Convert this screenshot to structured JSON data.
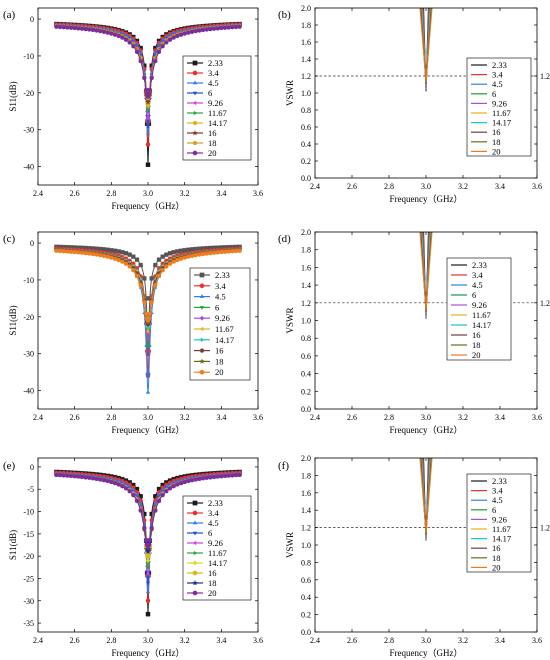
{
  "chart_data": [
    {
      "type": "line",
      "panel_label": "(a)",
      "xlabel": "Frequency（GHz）",
      "ylabel": "S11(dB)",
      "xlim": [
        2.4,
        3.6
      ],
      "ylim": [
        -45,
        3
      ],
      "xticks": [
        "2.4",
        "2.6",
        "2.8",
        "3.0",
        "3.2",
        "3.4",
        "3.6"
      ],
      "yticks": [
        "0",
        "-10",
        "-20",
        "-30",
        "-40"
      ],
      "ytick_values": [
        0,
        -10,
        -20,
        -30,
        -40
      ],
      "x_range": [
        2.5,
        3.5
      ],
      "resonance_ghz": 3.0,
      "legend_position": "right",
      "series": [
        {
          "name": "2.33",
          "color": "#1a1a1a",
          "marker": "square",
          "min_db": -39.5
        },
        {
          "name": "3.4",
          "color": "#e8312f",
          "marker": "circle",
          "min_db": -34
        },
        {
          "name": "4.5",
          "color": "#2e7ef0",
          "marker": "triangle-up",
          "min_db": -31
        },
        {
          "name": "6",
          "color": "#1a4fd6",
          "marker": "triangle-down",
          "min_db": -29
        },
        {
          "name": "9.26",
          "color": "#d63fd6",
          "marker": "triangle-left",
          "min_db": -27
        },
        {
          "name": "11.67",
          "color": "#1fa83a",
          "marker": "triangle-right",
          "min_db": -25
        },
        {
          "name": "14.17",
          "color": "#e0b51b",
          "marker": "hexagon",
          "min_db": -23.5
        },
        {
          "name": "16",
          "color": "#7a3b3b",
          "marker": "star",
          "min_db": -22.5
        },
        {
          "name": "18",
          "color": "#c9a227",
          "marker": "pentagon",
          "min_db": -21.5
        },
        {
          "name": "20",
          "color": "#7b2d9e",
          "marker": "circle",
          "min_db": -21
        }
      ]
    },
    {
      "type": "line",
      "panel_label": "(b)",
      "xlabel": "Frequency（GHz）",
      "ylabel": "VSWR",
      "xlim": [
        2.4,
        3.6
      ],
      "ylim": [
        0.0,
        2.0
      ],
      "xticks": [
        "2.4",
        "2.6",
        "2.8",
        "3.0",
        "3.2",
        "3.4",
        "3.6"
      ],
      "yticks": [
        "0.0",
        "0.2",
        "0.4",
        "0.6",
        "0.8",
        "1.0",
        "1.2",
        "1.4",
        "1.6",
        "1.8",
        "2.0"
      ],
      "ytick_values": [
        0,
        0.2,
        0.4,
        0.6,
        0.8,
        1.0,
        1.2,
        1.4,
        1.6,
        1.8,
        2.0
      ],
      "reference_line": {
        "y": 1.2,
        "label": "1.2"
      },
      "resonance_ghz": 3.0,
      "legend_position": "right",
      "series": [
        {
          "name": "2.33",
          "color": "#1a1a1a",
          "min_vswr": 1.02
        },
        {
          "name": "3.4",
          "color": "#e8312f",
          "min_vswr": 1.04
        },
        {
          "name": "4.5",
          "color": "#2e7ef0",
          "min_vswr": 1.05
        },
        {
          "name": "6",
          "color": "#1f9a3a",
          "min_vswr": 1.06
        },
        {
          "name": "9.26",
          "color": "#a64fd6",
          "min_vswr": 1.07
        },
        {
          "name": "11.67",
          "color": "#e0b51b",
          "min_vswr": 1.09
        },
        {
          "name": "14.17",
          "color": "#17c4c4",
          "min_vswr": 1.1
        },
        {
          "name": "16",
          "color": "#7a3b3b",
          "min_vswr": 1.11
        },
        {
          "name": "18",
          "color": "#6b6b1a",
          "min_vswr": 1.12
        },
        {
          "name": "20",
          "color": "#f07c1a",
          "min_vswr": 1.13
        }
      ]
    },
    {
      "type": "line",
      "panel_label": "(c)",
      "xlabel": "Frequency（GHz）",
      "ylabel": "S11(dB)",
      "xlim": [
        2.4,
        3.6
      ],
      "ylim": [
        -45,
        3
      ],
      "xticks": [
        "2.4",
        "2.6",
        "2.8",
        "3.0",
        "3.2",
        "3.4",
        "3.6"
      ],
      "yticks": [
        "0",
        "-10",
        "-20",
        "-30",
        "-40"
      ],
      "ytick_values": [
        0,
        -10,
        -20,
        -30,
        -40
      ],
      "x_range": [
        2.5,
        3.5
      ],
      "resonance_ghz": 3.0,
      "legend_position": "right",
      "series": [
        {
          "name": "2.33",
          "color": "#555555",
          "marker": "square",
          "min_db": -30
        },
        {
          "name": "3.4",
          "color": "#e8312f",
          "marker": "circle",
          "min_db": -36
        },
        {
          "name": "4.5",
          "color": "#2e7ef0",
          "marker": "triangle-up",
          "min_db": -40.5
        },
        {
          "name": "6",
          "color": "#1fa83a",
          "marker": "triangle-down",
          "min_db": -28
        },
        {
          "name": "9.26",
          "color": "#a64fd6",
          "marker": "diamond",
          "min_db": -26
        },
        {
          "name": "11.67",
          "color": "#e0b51b",
          "marker": "triangle-left",
          "min_db": -24
        },
        {
          "name": "14.17",
          "color": "#17c4c4",
          "marker": "triangle-right",
          "min_db": -23
        },
        {
          "name": "16",
          "color": "#7a3b3b",
          "marker": "hexagon",
          "min_db": -22
        },
        {
          "name": "18",
          "color": "#6b6b1a",
          "marker": "star",
          "min_db": -21.5
        },
        {
          "name": "20",
          "color": "#f07c1a",
          "marker": "circle",
          "min_db": -21
        }
      ]
    },
    {
      "type": "line",
      "panel_label": "(d)",
      "xlabel": "Frequency（GHz）",
      "ylabel": "VSWR",
      "xlim": [
        2.4,
        3.6
      ],
      "ylim": [
        0.0,
        2.0
      ],
      "xticks": [
        "2.4",
        "2.6",
        "2.8",
        "3.0",
        "3.2",
        "3.4",
        "3.6"
      ],
      "yticks": [
        "0.0",
        "0.2",
        "0.4",
        "0.6",
        "0.8",
        "1.0",
        "1.2",
        "1.4",
        "1.6",
        "1.8",
        "2.0"
      ],
      "ytick_values": [
        0,
        0.2,
        0.4,
        0.6,
        0.8,
        1.0,
        1.2,
        1.4,
        1.6,
        1.8,
        2.0
      ],
      "reference_line": {
        "y": 1.2,
        "label": "1.2"
      },
      "resonance_ghz": 3.0,
      "legend_position": "right",
      "series": [
        {
          "name": "2.33",
          "color": "#1a1a1a",
          "min_vswr": 1.02
        },
        {
          "name": "3.4",
          "color": "#e8312f",
          "min_vswr": 1.03
        },
        {
          "name": "4.5",
          "color": "#2e7ef0",
          "min_vswr": 1.04
        },
        {
          "name": "6",
          "color": "#1f9a3a",
          "min_vswr": 1.05
        },
        {
          "name": "9.26",
          "color": "#a64fd6",
          "min_vswr": 1.06
        },
        {
          "name": "11.67",
          "color": "#e0b51b",
          "min_vswr": 1.08
        },
        {
          "name": "14.17",
          "color": "#17c4c4",
          "min_vswr": 1.09
        },
        {
          "name": "16",
          "color": "#7a3b3b",
          "min_vswr": 1.1
        },
        {
          "name": "18",
          "color": "#6b6b1a",
          "min_vswr": 1.11
        },
        {
          "name": "20",
          "color": "#f07c1a",
          "min_vswr": 1.12
        }
      ]
    },
    {
      "type": "line",
      "panel_label": "(e)",
      "xlabel": "Frequency（GHz）",
      "ylabel": "S11(dB)",
      "xlim": [
        2.4,
        3.6
      ],
      "ylim": [
        -37,
        2
      ],
      "xticks": [
        "2.4",
        "2.6",
        "2.8",
        "3.0",
        "3.2",
        "3.4",
        "3.6"
      ],
      "yticks": [
        "0",
        "-5",
        "-10",
        "-15",
        "-20",
        "-25",
        "-30",
        "-35"
      ],
      "ytick_values": [
        0,
        -5,
        -10,
        -15,
        -20,
        -25,
        -30,
        -35
      ],
      "x_range": [
        2.5,
        3.5
      ],
      "resonance_ghz": 3.0,
      "legend_position": "right",
      "series": [
        {
          "name": "2.33",
          "color": "#1a1a1a",
          "marker": "square",
          "min_db": -33
        },
        {
          "name": "3.4",
          "color": "#e8312f",
          "marker": "circle",
          "min_db": -30
        },
        {
          "name": "4.5",
          "color": "#2e7ef0",
          "marker": "triangle-up",
          "min_db": -28
        },
        {
          "name": "6",
          "color": "#1a4fd6",
          "marker": "triangle-down",
          "min_db": -26
        },
        {
          "name": "9.26",
          "color": "#d63fd6",
          "marker": "triangle-left",
          "min_db": -24
        },
        {
          "name": "11.67",
          "color": "#1fa83a",
          "marker": "triangle-right",
          "min_db": -22.5
        },
        {
          "name": "14.17",
          "color": "#e0d61b",
          "marker": "diamond",
          "min_db": -21
        },
        {
          "name": "16",
          "color": "#e0b51b",
          "marker": "circle",
          "min_db": -20
        },
        {
          "name": "18",
          "color": "#1a2f8a",
          "marker": "star",
          "min_db": -19
        },
        {
          "name": "20",
          "color": "#7b2d9e",
          "marker": "circle",
          "min_db": -18
        }
      ]
    },
    {
      "type": "line",
      "panel_label": "(f)",
      "xlabel": "Frequency（GHz）",
      "ylabel": "VSWR",
      "xlim": [
        2.4,
        3.6
      ],
      "ylim": [
        0.0,
        2.0
      ],
      "xticks": [
        "2.4",
        "2.6",
        "2.8",
        "3.0",
        "3.2",
        "3.4",
        "3.6"
      ],
      "yticks": [
        "0.0",
        "0.2",
        "0.4",
        "0.6",
        "0.8",
        "1.0",
        "1.2",
        "1.4",
        "1.6",
        "1.8",
        "2.0"
      ],
      "ytick_values": [
        0,
        0.2,
        0.4,
        0.6,
        0.8,
        1.0,
        1.2,
        1.4,
        1.6,
        1.8,
        2.0
      ],
      "reference_line": {
        "y": 1.2,
        "label": "1.2"
      },
      "resonance_ghz": 3.0,
      "legend_position": "right",
      "series": [
        {
          "name": "2.33",
          "color": "#1a1a1a",
          "min_vswr": 1.05
        },
        {
          "name": "3.4",
          "color": "#e8312f",
          "min_vswr": 1.06
        },
        {
          "name": "4.5",
          "color": "#2e7ef0",
          "min_vswr": 1.07
        },
        {
          "name": "6",
          "color": "#1f9a3a",
          "min_vswr": 1.08
        },
        {
          "name": "9.26",
          "color": "#a64fd6",
          "min_vswr": 1.09
        },
        {
          "name": "11.67",
          "color": "#e0b51b",
          "min_vswr": 1.1
        },
        {
          "name": "14.17",
          "color": "#17c4c4",
          "min_vswr": 1.11
        },
        {
          "name": "16",
          "color": "#7a3b3b",
          "min_vswr": 1.12
        },
        {
          "name": "18",
          "color": "#6b6b1a",
          "min_vswr": 1.13
        },
        {
          "name": "20",
          "color": "#f07c1a",
          "min_vswr": 1.14
        }
      ]
    }
  ]
}
